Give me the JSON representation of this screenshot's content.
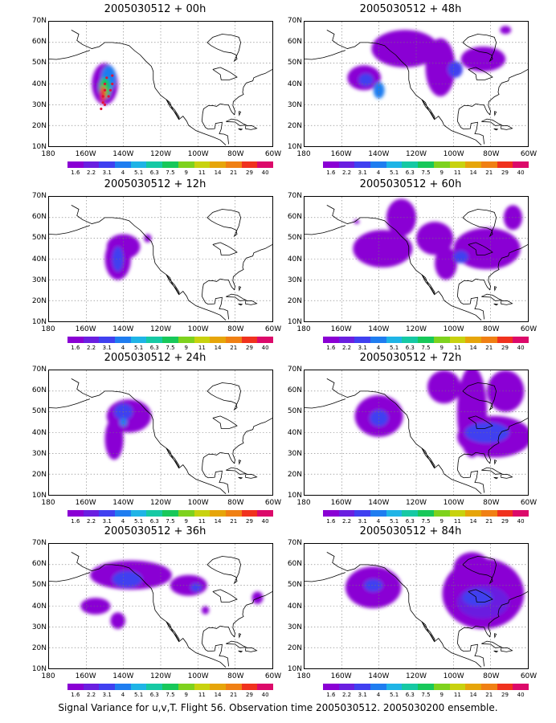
{
  "footer": "Signal Variance for u,v,T. Flight 56. Observation time 2005030512. 2005030200 ensemble.",
  "lat_labels": [
    "70N",
    "60N",
    "50N",
    "40N",
    "30N",
    "20N",
    "10N"
  ],
  "lon_labels": [
    "180",
    "160W",
    "140W",
    "120W",
    "100W",
    "80W",
    "60W"
  ],
  "colorbar": {
    "colors": [
      "#8a00d4",
      "#6a1fe0",
      "#4040f0",
      "#1f7df0",
      "#1fb4e6",
      "#16c9a4",
      "#18c85a",
      "#7ed21e",
      "#c8d20f",
      "#e6a50a",
      "#f08014",
      "#f0321e",
      "#dc0a6a"
    ],
    "labels": [
      "1.6",
      "2.2",
      "3.1",
      "4",
      "5.1",
      "6.3",
      "7.5",
      "9",
      "11",
      "14",
      "21",
      "29",
      "40"
    ]
  },
  "panels": [
    {
      "title": "2005030512 + 00h"
    },
    {
      "title": "2005030512 + 48h"
    },
    {
      "title": "2005030512 + 12h"
    },
    {
      "title": "2005030512 + 60h"
    },
    {
      "title": "2005030512 + 24h"
    },
    {
      "title": "2005030512 + 72h"
    },
    {
      "title": "2005030512 + 36h"
    },
    {
      "title": "2005030512 + 84h"
    }
  ]
}
